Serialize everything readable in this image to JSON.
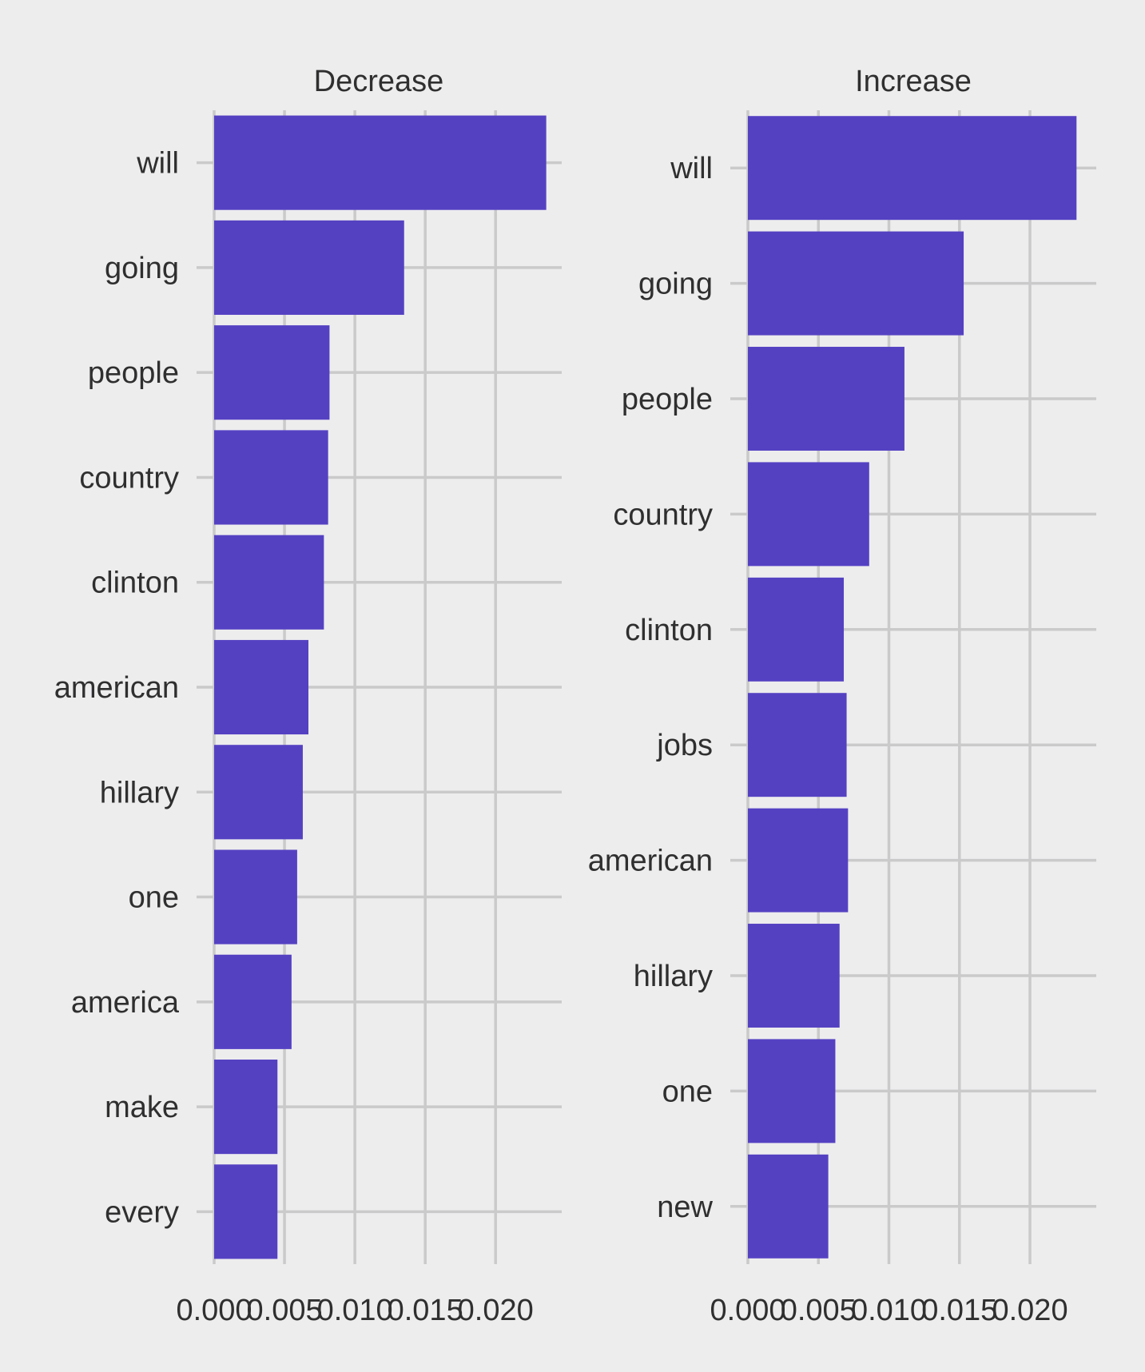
{
  "chart_data": [
    {
      "type": "bar",
      "orientation": "horizontal",
      "title": "Decrease",
      "categories": [
        "will",
        "going",
        "people",
        "country",
        "clinton",
        "american",
        "hillary",
        "one",
        "america",
        "make",
        "every"
      ],
      "values": [
        0.0236,
        0.0135,
        0.0082,
        0.0081,
        0.0078,
        0.0067,
        0.0063,
        0.0059,
        0.0055,
        0.0045,
        0.0045
      ],
      "xlim": [
        0,
        0.0247
      ],
      "xticks": [
        0.0,
        0.005,
        0.01,
        0.015,
        0.02
      ],
      "xtick_labels": [
        "0.000",
        "0.005",
        "0.010",
        "0.015",
        "0.020"
      ],
      "xlabel": "",
      "ylabel": "",
      "bar_color": "#5441c2",
      "grid": true
    },
    {
      "type": "bar",
      "orientation": "horizontal",
      "title": "Increase",
      "categories": [
        "will",
        "going",
        "people",
        "country",
        "clinton",
        "jobs",
        "american",
        "hillary",
        "one",
        "new"
      ],
      "values": [
        0.0233,
        0.0153,
        0.0111,
        0.0086,
        0.0068,
        0.007,
        0.0071,
        0.0065,
        0.0062,
        0.0057
      ],
      "xlim": [
        0,
        0.0247
      ],
      "xticks": [
        0.0,
        0.005,
        0.01,
        0.015,
        0.02
      ],
      "xtick_labels": [
        "0.000",
        "0.005",
        "0.010",
        "0.015",
        "0.020"
      ],
      "xlabel": "",
      "ylabel": "",
      "bar_color": "#5441c2",
      "grid": true
    }
  ],
  "colors": {
    "background": "#ededee",
    "bar": "#5441c2",
    "grid": "#cacaca",
    "text": "#2f2f2f"
  }
}
